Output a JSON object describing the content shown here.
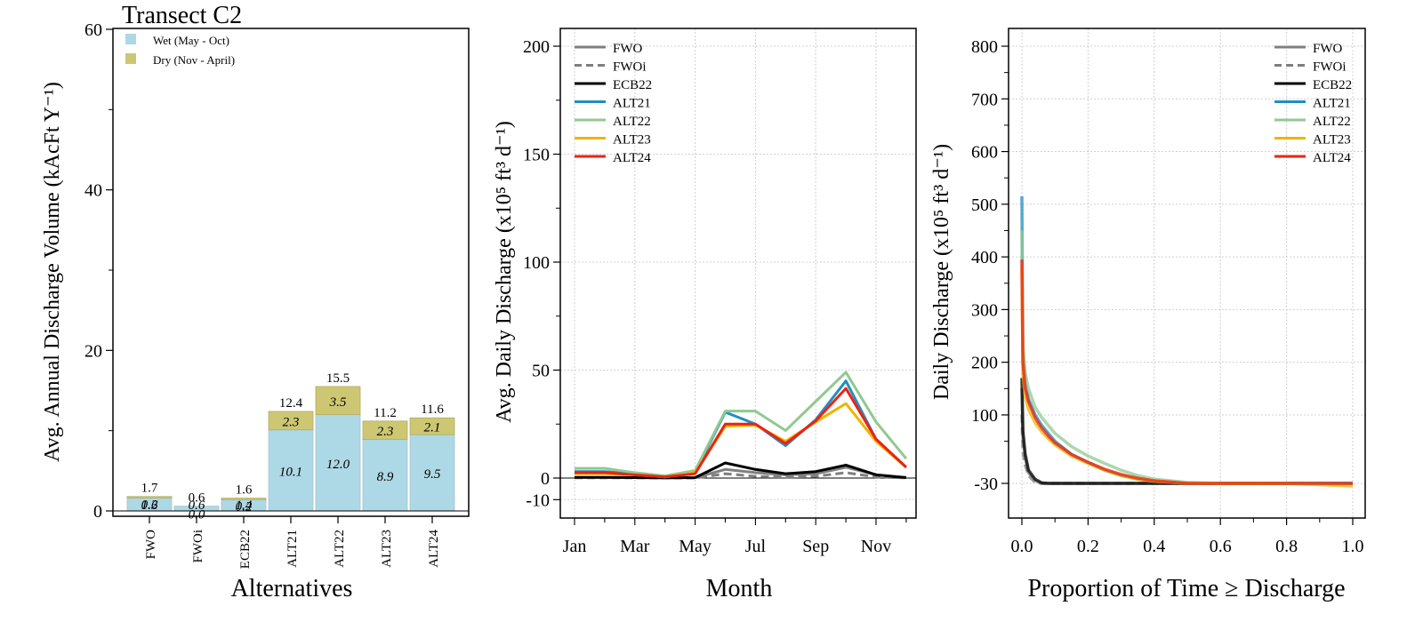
{
  "chart_data": [
    {
      "type": "bar",
      "title": "Transect C2",
      "xlabel": "Alternatives",
      "ylabel": "Avg. Annual Discharge Volume (kAcFt Y⁻¹)",
      "ylim": [
        0,
        60
      ],
      "yticks": [
        0,
        20,
        40,
        60
      ],
      "categories": [
        "FWO",
        "FWOi",
        "ECB22",
        "ALT21",
        "ALT22",
        "ALT23",
        "ALT24"
      ],
      "series": [
        {
          "name": "Wet (May - Oct)",
          "color": "#add8e6",
          "values": [
            1.6,
            0.6,
            1.4,
            10.1,
            12.0,
            8.9,
            9.5
          ],
          "labels": [
            "1.6",
            "0.6",
            "1.4",
            "10.1",
            "12.0",
            "8.9",
            "9.5"
          ]
        },
        {
          "name": "Dry (Nov - April)",
          "color": "#cdc673",
          "values": [
            0.2,
            0.0,
            0.2,
            2.3,
            3.5,
            2.3,
            2.1
          ],
          "labels": [
            "0.2",
            "0.0",
            "0.2",
            "2.3",
            "3.5",
            "2.3",
            "2.1"
          ]
        }
      ],
      "totals": [
        "1.7",
        "0.6",
        "1.6",
        "12.4",
        "15.5",
        "11.2",
        "11.6"
      ],
      "legend_position": "top-left",
      "grid": false
    },
    {
      "type": "line",
      "xlabel": "Month",
      "ylabel": "Avg. Daily Discharge (x10⁵ ft³ d⁻¹)",
      "ylim": [
        -15,
        205
      ],
      "yticks": [
        -10,
        0,
        50,
        100,
        150,
        200
      ],
      "xtick_labels": [
        "Jan",
        "Mar",
        "May",
        "Jul",
        "Sep",
        "Nov"
      ],
      "months": [
        1,
        2,
        3,
        4,
        5,
        6,
        7,
        8,
        9,
        10,
        11,
        12
      ],
      "series": [
        {
          "name": "FWO",
          "color": "#7f7f7f",
          "dash": "solid",
          "values": [
            0.3,
            0.3,
            0.2,
            0.1,
            0.2,
            4.0,
            2.5,
            1.5,
            2.0,
            5.0,
            1.5,
            0.3
          ]
        },
        {
          "name": "FWOi",
          "color": "#7f7f7f",
          "dash": "dashed",
          "values": [
            0.1,
            0.1,
            0.1,
            0.0,
            0.0,
            2.0,
            0.8,
            0.5,
            0.8,
            2.5,
            0.5,
            0.1
          ]
        },
        {
          "name": "ECB22",
          "color": "#000000",
          "dash": "solid",
          "values": [
            0.3,
            0.3,
            0.2,
            0.1,
            0.2,
            7.0,
            4.0,
            2.0,
            3.0,
            6.0,
            1.5,
            0.2
          ]
        },
        {
          "name": "ALT21",
          "color": "#1f8fbf",
          "dash": "solid",
          "values": [
            3.0,
            3.0,
            2.0,
            0.5,
            2.5,
            30.5,
            25.0,
            15.0,
            27.0,
            45.0,
            18.0,
            5.0
          ]
        },
        {
          "name": "ALT22",
          "color": "#90c990",
          "dash": "solid",
          "values": [
            4.5,
            4.5,
            2.5,
            1.0,
            3.5,
            31.0,
            31.0,
            22.0,
            35.5,
            49.0,
            26.0,
            9.0
          ]
        },
        {
          "name": "ALT23",
          "color": "#f0b400",
          "dash": "solid",
          "values": [
            2.0,
            2.0,
            1.5,
            0.5,
            2.5,
            24.0,
            24.5,
            17.0,
            26.0,
            34.5,
            17.0,
            5.0
          ]
        },
        {
          "name": "ALT24",
          "color": "#ee2211",
          "dash": "solid",
          "values": [
            2.5,
            2.5,
            1.5,
            0.5,
            2.0,
            25.0,
            25.0,
            16.0,
            26.5,
            41.5,
            18.0,
            5.0
          ]
        }
      ],
      "legend_position": "top-left",
      "grid": true
    },
    {
      "type": "line",
      "xlabel": "Proportion of Time ≥ Discharge",
      "ylabel": "Daily Discharge (x10⁵ ft³ d⁻¹)",
      "xlim": [
        -0.02,
        1.02
      ],
      "ylim": [
        -65,
        830
      ],
      "xticks": [
        0.0,
        0.2,
        0.4,
        0.6,
        0.8,
        1.0
      ],
      "xtick_labels": [
        "0.0",
        "0.2",
        "0.4",
        "0.6",
        "0.8",
        "1.0"
      ],
      "yticks": [
        -30,
        100,
        200,
        300,
        400,
        500,
        600,
        700,
        800
      ],
      "x": [
        0,
        0.003,
        0.01,
        0.02,
        0.04,
        0.06,
        0.08,
        0.1,
        0.15,
        0.2,
        0.25,
        0.3,
        0.35,
        0.4,
        0.5,
        0.6,
        0.8,
        1.0
      ],
      "series": [
        {
          "name": "FWO",
          "color": "#7f7f7f",
          "dash": "solid",
          "values": [
            150,
            60,
            20,
            -10,
            -25,
            -30,
            -30,
            -30,
            -30,
            -30,
            -30,
            -30,
            -30,
            -30,
            -30,
            -30,
            -30,
            -30
          ]
        },
        {
          "name": "FWOi",
          "color": "#7f7f7f",
          "dash": "dashed",
          "values": [
            100,
            30,
            5,
            -15,
            -28,
            -30,
            -30,
            -30,
            -30,
            -30,
            -30,
            -30,
            -30,
            -30,
            -30,
            -30,
            -30,
            -30
          ]
        },
        {
          "name": "ECB22",
          "color": "#000000",
          "dash": "solid",
          "values": [
            170,
            70,
            25,
            -5,
            -22,
            -29,
            -30,
            -30,
            -30,
            -30,
            -30,
            -30,
            -30,
            -30,
            -30,
            -30,
            -30,
            -30
          ]
        },
        {
          "name": "ALT21",
          "color": "#1f8fbf",
          "dash": "solid",
          "values": [
            515,
            220,
            160,
            130,
            100,
            80,
            65,
            50,
            25,
            10,
            -5,
            -15,
            -22,
            -26,
            -30,
            -30,
            -30,
            -30
          ]
        },
        {
          "name": "ALT22",
          "color": "#90c990",
          "dash": "solid",
          "values": [
            450,
            230,
            180,
            150,
            115,
            95,
            80,
            65,
            40,
            22,
            8,
            -5,
            -15,
            -22,
            -28,
            -30,
            -30,
            -30
          ]
        },
        {
          "name": "ALT23",
          "color": "#f0b400",
          "dash": "solid",
          "values": [
            380,
            180,
            135,
            110,
            85,
            68,
            55,
            43,
            22,
            8,
            -5,
            -15,
            -22,
            -26,
            -30,
            -30,
            -30,
            -35
          ]
        },
        {
          "name": "ALT24",
          "color": "#ee2211",
          "dash": "solid",
          "values": [
            395,
            200,
            150,
            125,
            95,
            75,
            60,
            47,
            25,
            10,
            -3,
            -13,
            -20,
            -25,
            -30,
            -30,
            -30,
            -30
          ]
        }
      ],
      "legend_position": "top-right",
      "grid": true
    }
  ]
}
